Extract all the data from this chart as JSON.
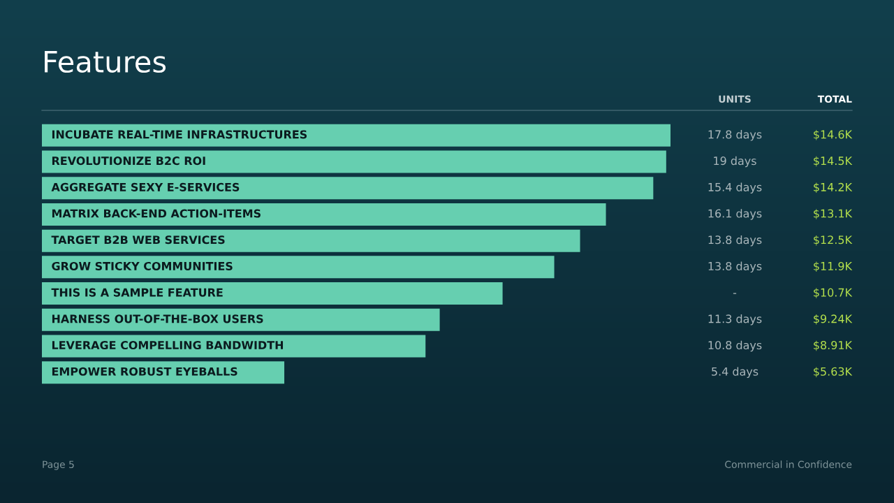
{
  "chart_data": {
    "type": "bar",
    "orientation": "horizontal",
    "title": "Features",
    "categories": [
      "INCUBATE REAL-TIME INFRASTRUCTURES",
      "REVOLUTIONIZE B2C ROI",
      "AGGREGATE SEXY E-SERVICES",
      "MATRIX BACK-END ACTION-ITEMS",
      "TARGET B2B WEB SERVICES",
      "GROW STICKY COMMUNITIES",
      "THIS IS A SAMPLE FEATURE",
      "HARNESS OUT-OF-THE-BOX USERS",
      "LEVERAGE COMPELLING BANDWIDTH",
      "EMPOWER ROBUST EYEBALLS"
    ],
    "values": [
      14.6,
      14.5,
      14.2,
      13.1,
      12.5,
      11.9,
      10.7,
      9.24,
      8.91,
      5.63
    ],
    "value_labels": [
      "$14.6K",
      "$14.5K",
      "$14.2K",
      "$13.1K",
      "$12.5K",
      "$11.9K",
      "$10.7K",
      "$9.24K",
      "$8.91K",
      "$5.63K"
    ],
    "color": "#66cfb0",
    "annotations": [
      "UNITS",
      "TOTAL",
      "Page 5",
      "Commercial in Confidence",
      "17.8 days",
      "19 days",
      "15.4 days",
      "16.1 days",
      "13.8 days",
      "13.8 days",
      "-",
      "11.3 days",
      "10.8 days",
      "5.4 days"
    ]
  }
}
